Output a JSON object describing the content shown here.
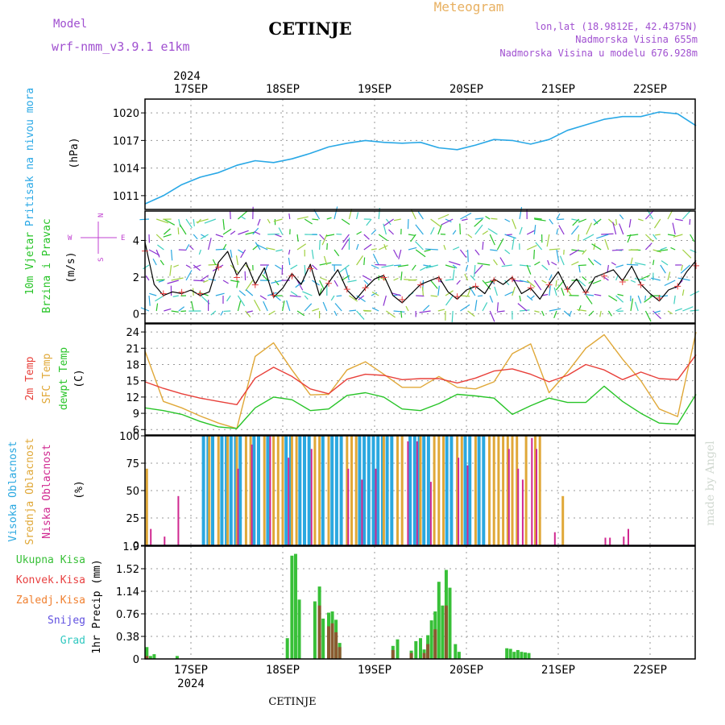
{
  "header": {
    "model_label": "Model",
    "model_name": "wrf-nmm_v3.9.1  e1km",
    "station": "CETINJE",
    "product": "Meteogram",
    "coords": "lon,lat (18.9812E, 42.4375N)",
    "elevation": "Nadmorska Visina 655m",
    "model_elevation": "Nadmorska Visina u modelu 676.928m",
    "watermark": "made by Angel",
    "footer_station": "CETINJE"
  },
  "colors": {
    "pressure": "#29a8e6",
    "temp2m": "#e8403a",
    "sfc_temp": "#e0a838",
    "dewpt": "#28c428",
    "high_cloud": "#2aa8e0",
    "mid_cloud": "#e0a838",
    "low_cloud": "#d02890",
    "total_precip": "#38c038",
    "conv_precip": "#e84040",
    "frozen": "#f08030",
    "snow": "#6050e0",
    "hail": "#30c8c0",
    "header_purple": "#a050d0",
    "header_orange": "#e8b060"
  },
  "time_axis": {
    "year": "2024",
    "days": [
      "17SEP",
      "18SEP",
      "19SEP",
      "20SEP",
      "21SEP",
      "22SEP"
    ]
  },
  "panels": {
    "pressure": {
      "ylabel": "Pritisak na nivou mora",
      "unit": "(hPa)",
      "ticks": [
        "1011",
        "1014",
        "1017",
        "1020"
      ]
    },
    "wind": {
      "ylabel1": "10m  Vjetar",
      "ylabel2": "Brzina i Pravac",
      "unit": "(m/s)",
      "ticks": [
        "0",
        "2",
        "4"
      ],
      "compass_w": "W",
      "compass_e": "E",
      "compass_n": "N",
      "compass_s": "S"
    },
    "temp": {
      "label1": "2m  Temp",
      "label2": "SFC Temp",
      "label3": "dewpt Temp",
      "unit": "(C)",
      "ticks": [
        "6",
        "9",
        "12",
        "15",
        "18",
        "21",
        "24"
      ]
    },
    "cloud": {
      "label1": "Visoka  Oblacnost",
      "label2": "Srednja  Oblacnost",
      "label3": "Niska  Oblacnost",
      "unit": "(%)",
      "ticks": [
        "0",
        "25",
        "50",
        "75",
        "100"
      ]
    },
    "precip": {
      "ylabel": "1hr Precip (mm)",
      "ticks": [
        "0",
        "0.38",
        "0.76",
        "1.14",
        "1.52",
        "1.9"
      ],
      "legend": [
        "Ukupna  Kisa",
        "Konvek.Kisa",
        "Zaledj.Kisa",
        "Snijeg",
        "Grad"
      ]
    }
  },
  "chart_data": [
    {
      "type": "line",
      "title": "",
      "ylabel": "Pritisak na nivou mora (hPa)",
      "ylim": [
        1009.5,
        1021.5
      ],
      "x_unit": "days from 2024-09-16 12:00",
      "series": [
        {
          "name": "",
          "x": [
            0.0,
            0.2,
            0.4,
            0.6,
            0.8,
            1.0,
            1.2,
            1.4,
            1.6,
            1.8,
            2.0,
            2.2,
            2.4,
            2.6,
            2.8,
            3.0,
            3.2,
            3.4,
            3.6,
            3.8,
            4.0,
            4.2,
            4.4,
            4.6,
            4.8,
            5.0,
            5.2,
            5.4,
            5.6,
            5.8,
            6.0
          ],
          "values": [
            1010.1,
            1011.0,
            1012.2,
            1013.0,
            1013.5,
            1014.3,
            1014.8,
            1014.6,
            1015.0,
            1015.6,
            1016.3,
            1016.7,
            1017.0,
            1016.8,
            1016.7,
            1016.8,
            1016.2,
            1016.0,
            1016.5,
            1017.1,
            1017.0,
            1016.6,
            1017.1,
            1018.1,
            1018.7,
            1019.3,
            1019.6,
            1019.6,
            1020.1,
            1019.9,
            1018.6
          ]
        }
      ]
    },
    {
      "type": "line",
      "title": "",
      "ylabel": "10m Vjetar Brzina i Pravac (m/s)",
      "ylim": [
        -0.5,
        5.6
      ],
      "series": [
        {
          "name": "",
          "x": [
            0.0,
            0.1,
            0.2,
            0.3,
            0.4,
            0.5,
            0.6,
            0.7,
            0.8,
            0.9,
            1.0,
            1.1,
            1.2,
            1.3,
            1.4,
            1.5,
            1.6,
            1.7,
            1.8,
            1.9,
            2.0,
            2.1,
            2.2,
            2.3,
            2.4,
            2.5,
            2.6,
            2.7,
            2.8,
            2.9,
            3.0,
            3.1,
            3.2,
            3.3,
            3.4,
            3.5,
            3.6,
            3.7,
            3.8,
            3.9,
            4.0,
            4.1,
            4.2,
            4.3,
            4.4,
            4.5,
            4.6,
            4.7,
            4.8,
            4.9,
            5.0,
            5.1,
            5.2,
            5.3,
            5.4,
            5.5,
            5.6,
            5.7,
            5.8,
            5.9,
            6.0
          ],
          "values": [
            3.9,
            1.6,
            1.0,
            1.2,
            1.1,
            1.3,
            1.0,
            1.2,
            2.8,
            3.4,
            2.1,
            2.8,
            1.6,
            2.5,
            0.9,
            1.4,
            2.2,
            1.6,
            2.7,
            1.0,
            1.7,
            2.4,
            1.3,
            0.8,
            1.4,
            1.9,
            2.1,
            1.0,
            0.6,
            1.1,
            1.6,
            1.8,
            2.0,
            1.2,
            0.8,
            1.3,
            1.5,
            1.1,
            1.9,
            1.6,
            2.0,
            1.1,
            1.4,
            0.8,
            1.6,
            2.3,
            1.3,
            1.9,
            1.1,
            2.0,
            2.2,
            2.4,
            1.8,
            2.6,
            1.6,
            1.1,
            0.7,
            1.3,
            1.5,
            2.3,
            2.9
          ]
        }
      ]
    },
    {
      "type": "line",
      "title": "",
      "ylabel": "(C)",
      "ylim": [
        5,
        25.5
      ],
      "series": [
        {
          "name": "2m  Temp",
          "x": [
            0.0,
            0.2,
            0.4,
            0.6,
            0.8,
            1.0,
            1.2,
            1.4,
            1.6,
            1.8,
            2.0,
            2.2,
            2.4,
            2.6,
            2.8,
            3.0,
            3.2,
            3.4,
            3.6,
            3.8,
            4.0,
            4.2,
            4.4,
            4.6,
            4.8,
            5.0,
            5.2,
            5.4,
            5.6,
            5.8,
            6.0
          ],
          "values": [
            14.8,
            13.6,
            12.6,
            11.8,
            11.2,
            10.6,
            15.5,
            17.5,
            15.8,
            13.5,
            12.6,
            15.3,
            16.2,
            16.0,
            15.2,
            15.4,
            15.4,
            14.6,
            15.5,
            16.8,
            17.2,
            16.2,
            14.8,
            16.0,
            18.0,
            17.0,
            15.2,
            16.6,
            15.4,
            15.2,
            19.8
          ]
        },
        {
          "name": "SFC Temp",
          "x": [
            0.0,
            0.2,
            0.4,
            0.6,
            0.8,
            1.0,
            1.2,
            1.4,
            1.6,
            1.8,
            2.0,
            2.2,
            2.4,
            2.6,
            2.8,
            3.0,
            3.2,
            3.4,
            3.6,
            3.8,
            4.0,
            4.2,
            4.4,
            4.6,
            4.8,
            5.0,
            5.2,
            5.4,
            5.6,
            5.8,
            6.0
          ],
          "values": [
            20.5,
            11.2,
            10.0,
            8.5,
            7.2,
            6.2,
            19.5,
            22.0,
            17.0,
            12.4,
            12.5,
            17.0,
            18.5,
            16.2,
            13.8,
            13.8,
            15.8,
            13.8,
            13.5,
            14.8,
            20.0,
            21.8,
            12.8,
            16.6,
            21.0,
            23.5,
            19.0,
            15.0,
            9.8,
            8.4,
            24.0
          ]
        },
        {
          "name": "dewpt Temp",
          "x": [
            0.0,
            0.2,
            0.4,
            0.6,
            0.8,
            1.0,
            1.2,
            1.4,
            1.6,
            1.8,
            2.0,
            2.2,
            2.4,
            2.6,
            2.8,
            3.0,
            3.2,
            3.4,
            3.6,
            3.8,
            4.0,
            4.2,
            4.4,
            4.6,
            4.8,
            5.0,
            5.2,
            5.4,
            5.6,
            5.8,
            6.0
          ],
          "values": [
            10.0,
            9.5,
            8.8,
            7.5,
            6.5,
            6.2,
            10.0,
            12.0,
            11.5,
            9.5,
            9.8,
            12.3,
            12.8,
            12.0,
            9.8,
            9.5,
            10.8,
            12.5,
            12.2,
            11.8,
            8.8,
            10.4,
            11.8,
            11.0,
            11.0,
            14.0,
            11.2,
            9.0,
            7.2,
            7.0,
            12.5
          ]
        }
      ]
    },
    {
      "type": "bar",
      "title": "",
      "ylabel": "(%)",
      "ylim": [
        0,
        100
      ],
      "series": [
        {
          "name": "Visoka  Oblacnost",
          "x": [
            0.65,
            0.7,
            0.75,
            0.85,
            0.9,
            0.95,
            1.0,
            1.05,
            1.2,
            1.25,
            1.35,
            1.55,
            1.6,
            1.7,
            1.75,
            1.8,
            1.95,
            2.05,
            2.1,
            2.15,
            2.35,
            2.4,
            2.45,
            2.5,
            2.55,
            2.6,
            2.65,
            2.7,
            2.9,
            2.95,
            3.0,
            3.05,
            3.1,
            3.3,
            3.35,
            3.5,
            3.55,
            3.65,
            3.7
          ],
          "values": [
            100,
            100,
            100,
            100,
            100,
            100,
            100,
            100,
            100,
            100,
            100,
            100,
            100,
            100,
            100,
            100,
            100,
            100,
            100,
            100,
            100,
            100,
            100,
            100,
            100,
            100,
            100,
            100,
            100,
            100,
            100,
            100,
            100,
            100,
            100,
            100,
            100,
            100,
            100
          ]
        },
        {
          "name": "Srednja  Oblacnost",
          "x": [
            0.02,
            0.7,
            0.8,
            0.9,
            1.0,
            1.1,
            1.15,
            1.3,
            1.4,
            1.45,
            1.5,
            1.6,
            1.65,
            1.85,
            1.9,
            2.0,
            2.2,
            2.25,
            2.3,
            2.6,
            2.75,
            2.8,
            3.0,
            3.15,
            3.2,
            3.25,
            3.4,
            3.45,
            3.6,
            3.75,
            3.8,
            3.85,
            3.9,
            3.95,
            4.0,
            4.05,
            4.15,
            4.25,
            4.3,
            4.55
          ],
          "values": [
            70,
            100,
            100,
            100,
            100,
            100,
            100,
            100,
            100,
            100,
            100,
            100,
            100,
            100,
            100,
            100,
            100,
            100,
            100,
            100,
            100,
            100,
            100,
            100,
            100,
            100,
            100,
            100,
            100,
            100,
            100,
            100,
            100,
            100,
            100,
            100,
            100,
            100,
            100,
            45
          ]
        },
        {
          "name": "Niska  Oblacnost",
          "x": [
            0.05,
            0.2,
            0.35,
            1.0,
            1.15,
            1.35,
            1.55,
            1.8,
            2.2,
            2.35,
            2.5,
            2.85,
            2.95,
            3.1,
            3.4,
            3.5,
            3.95,
            4.05,
            4.1,
            4.2,
            4.25,
            4.45,
            5.0,
            5.05,
            5.2,
            5.25
          ],
          "values": [
            15,
            8,
            45,
            70,
            92,
            100,
            80,
            88,
            70,
            60,
            70,
            95,
            95,
            58,
            80,
            73,
            88,
            70,
            60,
            98,
            88,
            12,
            7,
            7,
            8,
            15
          ]
        }
      ]
    },
    {
      "type": "bar",
      "title": "",
      "ylabel": "1hr Precip (mm)",
      "ylim": [
        0,
        1.9
      ],
      "series": [
        {
          "name": "Ukupna  Kisa",
          "x": [
            0.02,
            0.06,
            0.1,
            0.35,
            1.55,
            1.6,
            1.64,
            1.68,
            1.72,
            1.76,
            1.85,
            1.9,
            1.94,
            2.0,
            2.04,
            2.08,
            2.12,
            2.16,
            2.24,
            2.7,
            2.75,
            2.8,
            2.9,
            2.95,
            3.0,
            3.04,
            3.08,
            3.12,
            3.16,
            3.2,
            3.24,
            3.28,
            3.32,
            3.38,
            3.42,
            3.94,
            3.98,
            4.02,
            4.06,
            4.1,
            4.14,
            4.18
          ],
          "values": [
            0.2,
            0.05,
            0.08,
            0.05,
            0.35,
            1.74,
            1.77,
            1.0,
            0,
            0,
            0.97,
            1.22,
            0.68,
            0.78,
            0.8,
            0.66,
            0.27,
            0,
            0,
            0.22,
            0.33,
            0,
            0.14,
            0.3,
            0.35,
            0.16,
            0.4,
            0.65,
            0.8,
            1.3,
            0.9,
            1.5,
            1.2,
            0.25,
            0.12,
            0.18,
            0.17,
            0.12,
            0.15,
            0.12,
            0.11,
            0.1
          ]
        },
        {
          "name": "Konvek.Kisa",
          "x": [
            0.02,
            1.9,
            2.0,
            2.04,
            2.08,
            2.12,
            2.7,
            2.9,
            3.04,
            3.08,
            3.16,
            3.28
          ],
          "values": [
            0.05,
            0.9,
            0.55,
            0.6,
            0.45,
            0.2,
            0.15,
            0.1,
            0.1,
            0.25,
            0.5,
            0.9
          ]
        },
        {
          "name": "Zaledj.Kisa",
          "x": [],
          "values": []
        },
        {
          "name": "Snijeg",
          "x": [],
          "values": []
        },
        {
          "name": "Grad",
          "x": [],
          "values": []
        }
      ]
    }
  ]
}
